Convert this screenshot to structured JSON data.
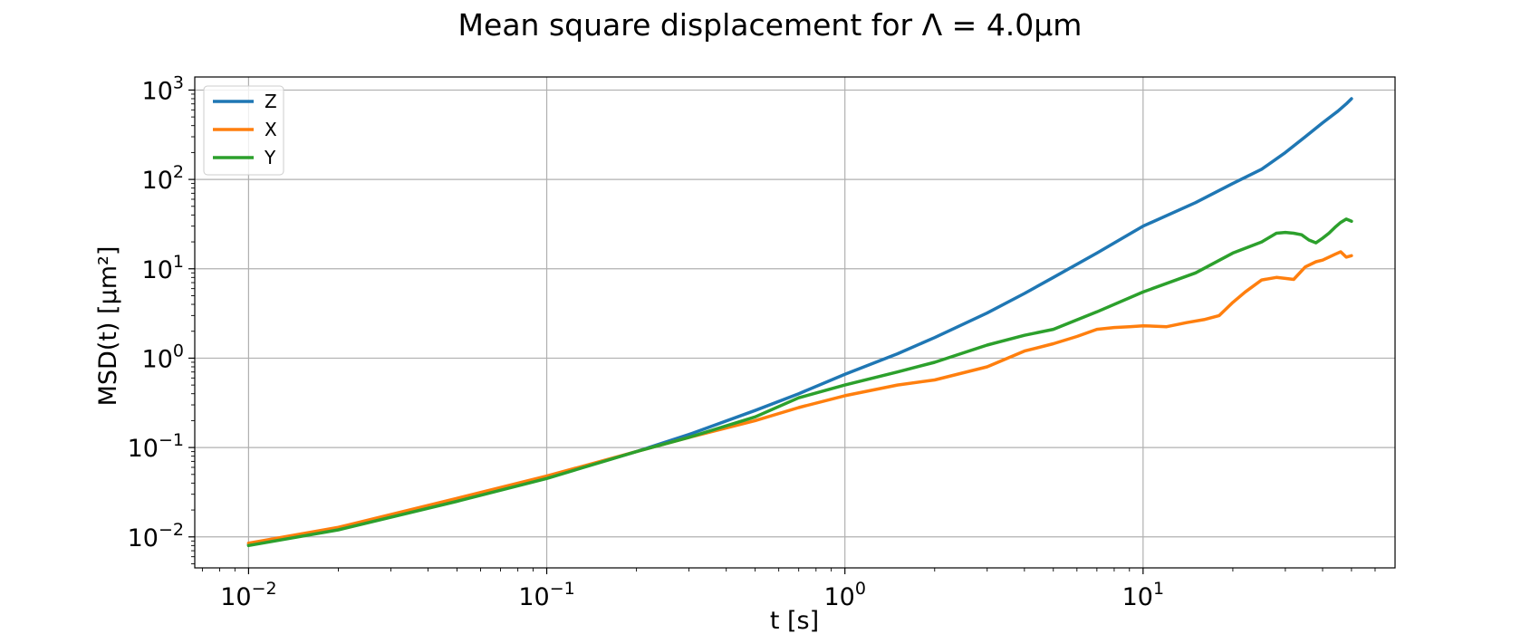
{
  "chart_data": {
    "type": "line",
    "title": "Mean square displacement for Λ = 4.0μm",
    "xlabel": "t [s]",
    "ylabel": "MSD(t) [μm²]",
    "xscale": "log",
    "yscale": "log",
    "xlim": [
      0.0066,
      70
    ],
    "ylim": [
      0.0045,
      1400
    ],
    "grid": true,
    "legend_position": "upper-left",
    "x_ticks": [
      {
        "value": 0.01,
        "base": "10",
        "exp": "−2"
      },
      {
        "value": 0.1,
        "base": "10",
        "exp": "−1"
      },
      {
        "value": 1,
        "base": "10",
        "exp": "0"
      },
      {
        "value": 10,
        "base": "10",
        "exp": "1"
      }
    ],
    "y_ticks": [
      {
        "value": 0.01,
        "base": "10",
        "exp": "−2"
      },
      {
        "value": 0.1,
        "base": "10",
        "exp": "−1"
      },
      {
        "value": 1,
        "base": "10",
        "exp": "0"
      },
      {
        "value": 10,
        "base": "10",
        "exp": "1"
      },
      {
        "value": 100,
        "base": "10",
        "exp": "2"
      },
      {
        "value": 1000,
        "base": "10",
        "exp": "3"
      }
    ],
    "series": [
      {
        "name": "Z",
        "color": "#1f77b4",
        "points": [
          [
            0.01,
            0.0082
          ],
          [
            0.02,
            0.0125
          ],
          [
            0.05,
            0.026
          ],
          [
            0.1,
            0.046
          ],
          [
            0.2,
            0.09
          ],
          [
            0.3,
            0.14
          ],
          [
            0.5,
            0.26
          ],
          [
            0.7,
            0.4
          ],
          [
            1.0,
            0.66
          ],
          [
            1.5,
            1.12
          ],
          [
            2.0,
            1.7
          ],
          [
            3.0,
            3.2
          ],
          [
            4.0,
            5.3
          ],
          [
            5.0,
            8.0
          ],
          [
            7.0,
            15
          ],
          [
            10,
            30
          ],
          [
            15,
            55
          ],
          [
            20,
            90
          ],
          [
            25,
            130
          ],
          [
            30,
            200
          ],
          [
            35,
            300
          ],
          [
            40,
            430
          ],
          [
            45,
            580
          ],
          [
            48,
            700
          ],
          [
            50,
            800
          ]
        ]
      },
      {
        "name": "X",
        "color": "#ff7f0e",
        "points": [
          [
            0.01,
            0.0085
          ],
          [
            0.02,
            0.0128
          ],
          [
            0.05,
            0.027
          ],
          [
            0.1,
            0.048
          ],
          [
            0.2,
            0.09
          ],
          [
            0.3,
            0.13
          ],
          [
            0.5,
            0.2
          ],
          [
            0.7,
            0.28
          ],
          [
            1.0,
            0.38
          ],
          [
            1.5,
            0.5
          ],
          [
            2.0,
            0.57
          ],
          [
            3.0,
            0.8
          ],
          [
            4.0,
            1.2
          ],
          [
            5.0,
            1.45
          ],
          [
            6.0,
            1.75
          ],
          [
            7.0,
            2.1
          ],
          [
            8.0,
            2.2
          ],
          [
            9.0,
            2.25
          ],
          [
            10,
            2.3
          ],
          [
            12,
            2.25
          ],
          [
            14,
            2.5
          ],
          [
            16,
            2.7
          ],
          [
            18,
            3.0
          ],
          [
            20,
            4.2
          ],
          [
            22,
            5.5
          ],
          [
            25,
            7.5
          ],
          [
            28,
            8.0
          ],
          [
            30,
            7.8
          ],
          [
            32,
            7.6
          ],
          [
            35,
            10.5
          ],
          [
            38,
            12
          ],
          [
            40,
            12.5
          ],
          [
            42,
            13.5
          ],
          [
            44,
            14.5
          ],
          [
            46,
            15.5
          ],
          [
            48,
            13.5
          ],
          [
            50,
            14.0
          ]
        ]
      },
      {
        "name": "Y",
        "color": "#2ca02c",
        "points": [
          [
            0.01,
            0.008
          ],
          [
            0.02,
            0.012
          ],
          [
            0.05,
            0.025
          ],
          [
            0.1,
            0.045
          ],
          [
            0.2,
            0.09
          ],
          [
            0.3,
            0.13
          ],
          [
            0.5,
            0.22
          ],
          [
            0.7,
            0.36
          ],
          [
            1.0,
            0.5
          ],
          [
            1.5,
            0.7
          ],
          [
            2.0,
            0.9
          ],
          [
            3.0,
            1.4
          ],
          [
            4.0,
            1.8
          ],
          [
            5.0,
            2.1
          ],
          [
            7.0,
            3.3
          ],
          [
            10,
            5.5
          ],
          [
            15,
            9
          ],
          [
            20,
            15
          ],
          [
            25,
            20
          ],
          [
            28,
            25
          ],
          [
            30,
            25.5
          ],
          [
            32,
            25
          ],
          [
            34,
            24
          ],
          [
            36,
            21
          ],
          [
            38,
            19.5
          ],
          [
            40,
            22
          ],
          [
            42,
            25
          ],
          [
            44,
            29
          ],
          [
            46,
            33
          ],
          [
            48,
            36
          ],
          [
            50,
            34
          ]
        ]
      }
    ]
  }
}
